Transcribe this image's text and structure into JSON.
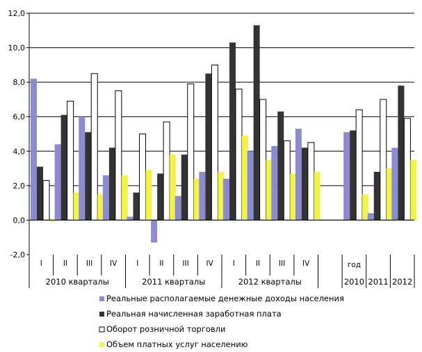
{
  "chart_data": {
    "type": "bar",
    "ylim": [
      -2,
      12
    ],
    "ytick_step": 2,
    "ytick_labels": [
      "-2,0",
      "0,0",
      "2,0",
      "4,0",
      "6,0",
      "8,0",
      "10,0",
      "12,0"
    ],
    "grid": true,
    "legend_position": "bottom",
    "categories": [
      "I",
      "II",
      "III",
      "IV",
      "I",
      "II",
      "III",
      "IV",
      "I",
      "II",
      "III",
      "IV",
      "",
      "2010",
      "2011",
      "2012"
    ],
    "category_groups": [
      {
        "label": "2010 кварталы",
        "span": 4
      },
      {
        "label": "2011 кварталы",
        "span": 4
      },
      {
        "label": "2012 кварталы",
        "span": 4
      },
      {
        "label": "",
        "span": 1
      },
      {
        "label": "",
        "span": 3
      }
    ],
    "extra_label": "год",
    "series": [
      {
        "name": "Реальные располагаемые  денежные доходы населения",
        "color": "#8b8bd0",
        "values": [
          8.2,
          4.4,
          6.0,
          2.6,
          0.2,
          -1.3,
          1.4,
          2.8,
          2.4,
          4.0,
          4.3,
          5.3,
          null,
          5.1,
          0.4,
          4.2
        ]
      },
      {
        "name": "Реальная начисленная  заработная плата",
        "color": "#333333",
        "values": [
          3.1,
          6.1,
          5.1,
          4.2,
          1.6,
          2.7,
          3.8,
          8.5,
          10.3,
          11.3,
          6.3,
          4.2,
          null,
          5.2,
          2.8,
          7.8
        ]
      },
      {
        "name": "Оборот розничной торговли",
        "color": "#ffffff",
        "values": [
          2.3,
          6.9,
          8.5,
          7.5,
          5.0,
          5.7,
          7.9,
          9.0,
          7.6,
          7.0,
          4.6,
          4.5,
          null,
          6.4,
          7.0,
          5.9
        ]
      },
      {
        "name": "Объем платных услуг населению",
        "color": "#f2f24a",
        "values": [
          -0.1,
          1.6,
          1.5,
          2.6,
          2.9,
          3.8,
          2.4,
          2.8,
          4.9,
          3.5,
          2.7,
          2.8,
          null,
          1.5,
          3.0,
          3.5
        ]
      }
    ]
  }
}
